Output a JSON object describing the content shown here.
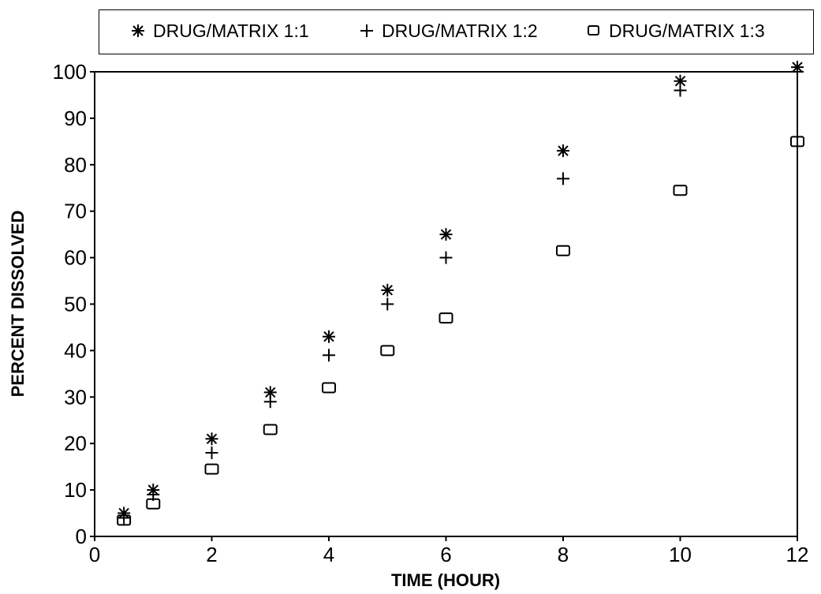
{
  "chart_data": {
    "type": "scatter",
    "xlabel": "TIME (HOUR)",
    "ylabel": "PERCENT DISSOLVED",
    "xlim": [
      0,
      12
    ],
    "ylim": [
      0,
      100
    ],
    "xticks": [
      0,
      2,
      4,
      6,
      8,
      10,
      12
    ],
    "yticks": [
      0,
      10,
      20,
      30,
      40,
      50,
      60,
      70,
      80,
      90,
      100
    ],
    "grid": false,
    "legend_position": "top",
    "series": [
      {
        "name": "DRUG/MATRIX 1:1",
        "marker": "asterisk",
        "color": "#000000",
        "x": [
          0.5,
          1,
          2,
          3,
          4,
          5,
          6,
          8,
          10,
          12
        ],
        "y": [
          5,
          10,
          21,
          31,
          43,
          53,
          65,
          83,
          98,
          101
        ]
      },
      {
        "name": "DRUG/MATRIX 1:2",
        "marker": "plus",
        "color": "#000000",
        "x": [
          0.5,
          1,
          2,
          3,
          4,
          5,
          6,
          8,
          10,
          12
        ],
        "y": [
          4,
          9,
          18,
          29,
          39,
          50,
          60,
          77,
          96,
          100
        ]
      },
      {
        "name": "DRUG/MATRIX 1:3",
        "marker": "square",
        "color": "#000000",
        "x": [
          0.5,
          1,
          2,
          3,
          4,
          5,
          6,
          8,
          10,
          12
        ],
        "y": [
          3.5,
          7,
          14.5,
          23,
          32,
          40,
          47,
          61.5,
          74.5,
          85
        ]
      }
    ]
  }
}
